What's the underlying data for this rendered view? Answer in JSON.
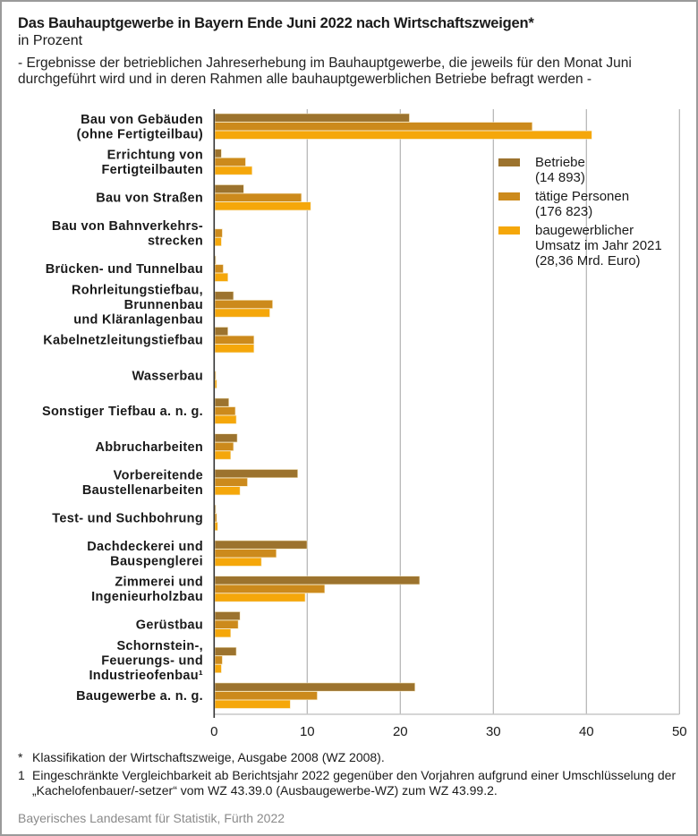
{
  "header": {
    "title": "Das Bauhauptgewerbe in Bayern Ende Juni 2022 nach Wirtschaftszweigen*",
    "subtitle": "in Prozent",
    "description": "- Ergebnisse der betrieblichen Jahreserhebung im Bauhauptgewerbe, die jeweils für den Monat Juni durchgeführt wird und in deren Rahmen alle bauhauptgewerblichen Betriebe befragt werden -"
  },
  "chart_data": {
    "type": "bar",
    "orientation": "horizontal",
    "title": "Das Bauhauptgewerbe in Bayern Ende Juni 2022 nach Wirtschaftszweigen*",
    "subtitle": "in Prozent",
    "xlabel": "",
    "ylabel": "",
    "xlim": [
      0,
      50
    ],
    "xticks": [
      0,
      10,
      20,
      30,
      40,
      50
    ],
    "grid": true,
    "legend_position": "top-right",
    "categories": [
      [
        "Bau von Gebäuden",
        "(ohne Fertigteilbau)"
      ],
      [
        "Errichtung von",
        "Fertigteilbauten"
      ],
      [
        "Bau von Straßen"
      ],
      [
        "Bau von Bahnverkehrs-",
        "strecken"
      ],
      [
        "Brücken- und Tunnelbau"
      ],
      [
        "Rohrleitungstiefbau,",
        "Brunnenbau",
        "und Kläranlagenbau"
      ],
      [
        "Kabelnetzleitungstiefbau"
      ],
      [
        "Wasserbau"
      ],
      [
        "Sonstiger Tiefbau a. n. g."
      ],
      [
        "Abbrucharbeiten"
      ],
      [
        "Vorbereitende",
        "Baustellenarbeiten"
      ],
      [
        "Test- und Suchbohrung"
      ],
      [
        "Dachdeckerei und",
        "Bauspenglerei"
      ],
      [
        "Zimmerei und",
        "Ingenieurholzbau"
      ],
      [
        "Gerüstbau"
      ],
      [
        "Schornstein-,",
        "Feuerungs- und",
        "Industrieofenbau¹"
      ],
      [
        "Baugewerbe a. n. g."
      ]
    ],
    "series": [
      {
        "name": "Betriebe (14 893)",
        "color": "#9c732e",
        "values": [
          20.9,
          0.7,
          3.1,
          0.0,
          0.1,
          2.0,
          1.4,
          0.0,
          1.5,
          2.4,
          8.9,
          0.1,
          9.9,
          22.0,
          2.7,
          2.3,
          21.5
        ]
      },
      {
        "name": "tätige Personen (176 823)",
        "color": "#cc8a1c",
        "values": [
          34.1,
          3.3,
          9.3,
          0.8,
          0.9,
          6.2,
          4.2,
          0.1,
          2.2,
          2.0,
          3.5,
          0.2,
          6.6,
          11.8,
          2.5,
          0.8,
          11.0
        ]
      },
      {
        "name": "baugewerblicher Umsatz im Jahr 2021 (28,36 Mrd. Euro)",
        "color": "#f5a70a",
        "values": [
          40.5,
          4.0,
          10.3,
          0.7,
          1.4,
          5.9,
          4.2,
          0.2,
          2.3,
          1.7,
          2.7,
          0.3,
          5.0,
          9.7,
          1.7,
          0.7,
          8.1
        ]
      }
    ]
  },
  "legend": [
    {
      "label": "Betriebe\n(14 893)",
      "color": "#9c732e"
    },
    {
      "label": "tätige Personen\n(176 823)",
      "color": "#cc8a1c"
    },
    {
      "label": "baugewerblicher\nUmsatz im Jahr 2021\n(28,36 Mrd. Euro)",
      "color": "#f5a70a"
    }
  ],
  "footnotes": [
    {
      "mark": "*",
      "text": "Klassifikation der Wirtschaftszweige, Ausgabe 2008 (WZ 2008)."
    },
    {
      "mark": "1",
      "text": "Eingeschränkte Vergleichbarkeit ab Berichtsjahr 2022 gegenüber den Vorjahren aufgrund einer Umschlüsselung der „Kachelofenbauer/-setzer“ vom WZ 43.39.0 (Ausbaugewerbe-WZ) zum WZ 43.99.2."
    }
  ],
  "source": "Bayerisches Landesamt für Statistik, Fürth 2022"
}
